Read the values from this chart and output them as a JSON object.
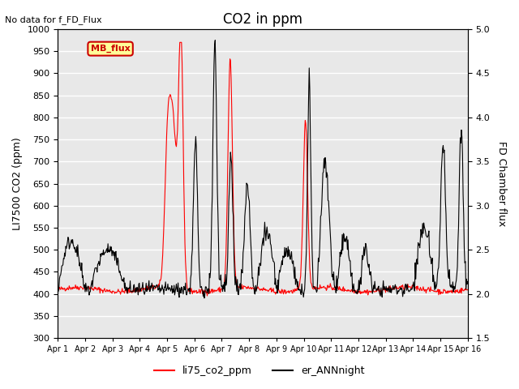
{
  "title": "CO2 in ppm",
  "top_left_text": "No data for f_FD_Flux",
  "ylabel_left": "LI7500 CO2 (ppm)",
  "ylabel_right": "FD Chamber flux",
  "ylim_left": [
    300,
    1000
  ],
  "ylim_right": [
    1.5,
    5.0
  ],
  "yticks_left": [
    300,
    350,
    400,
    450,
    500,
    550,
    600,
    650,
    700,
    750,
    800,
    850,
    900,
    950,
    1000
  ],
  "yticks_right": [
    1.5,
    2.0,
    2.5,
    3.0,
    3.5,
    4.0,
    4.5,
    5.0
  ],
  "xtick_labels": [
    "Apr 1",
    "Apr 2",
    "Apr 3",
    "Apr 4",
    "Apr 5",
    "Apr 6",
    "Apr 7",
    "Apr 8",
    "Apr 9",
    "Apr 10",
    "Apr 11",
    "Apr 12",
    "Apr 13",
    "Apr 14",
    "Apr 15",
    "Apr 16"
  ],
  "legend_entries": [
    "li75_co2_ppm",
    "er_ANNnight"
  ],
  "legend_colors": [
    "#ff0000",
    "#000000"
  ],
  "mb_flux_box_color": "#ffff99",
  "mb_flux_border_color": "#cc0000",
  "background_color": "#e8e8e8",
  "grid_color": "#ffffff",
  "line_color_red": "#ff0000",
  "line_color_black": "#000000",
  "figsize": [
    6.4,
    4.8
  ],
  "dpi": 100
}
